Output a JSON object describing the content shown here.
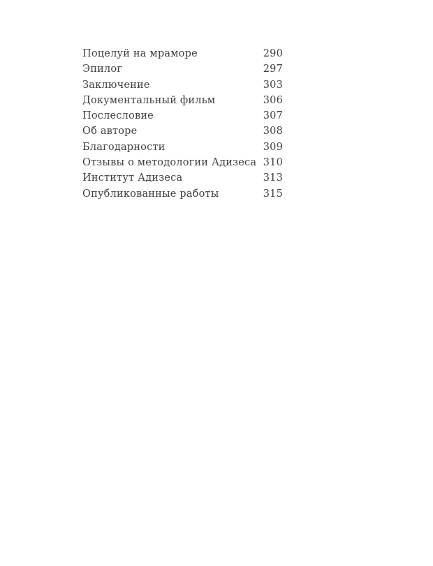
{
  "page": {
    "background": "#ffffff",
    "text_color": "#3e3e3e"
  },
  "toc": {
    "entries": [
      {
        "title": "Поцелуй на мраморе",
        "page": "290"
      },
      {
        "title": "Эпилог",
        "page": "297"
      },
      {
        "title": "Заключение",
        "page": "303"
      },
      {
        "title": "Документальный фильм",
        "page": "306"
      },
      {
        "title": "Послесловие",
        "page": "307"
      },
      {
        "title": "Об авторе",
        "page": "308"
      },
      {
        "title": "Благодарности",
        "page": "309"
      },
      {
        "title": "Отзывы о методологии Адизеса",
        "page": "310"
      },
      {
        "title": "Институт Адизеса",
        "page": "313"
      },
      {
        "title": "Опубликованные работы",
        "page": "315"
      }
    ]
  }
}
